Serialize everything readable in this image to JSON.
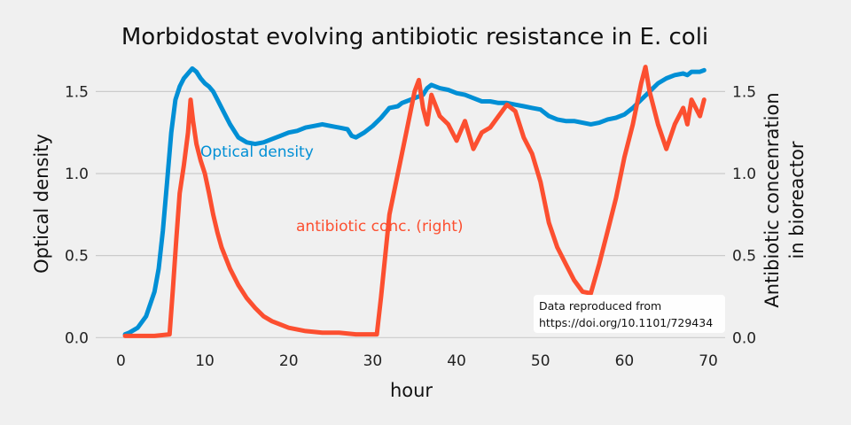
{
  "chart_data": {
    "type": "line",
    "title": "Morbidostat evolving antibiotic resistance in E. coli",
    "xlabel": "hour",
    "ylabel": "Optical density",
    "ylabel_right": [
      "Antibiotic concenration",
      "in bioreactor"
    ],
    "xlim": [
      -3,
      72
    ],
    "ylim": [
      -0.02,
      1.68
    ],
    "ylim_right": [
      -0.02,
      1.68
    ],
    "x_ticks": [
      0,
      10,
      20,
      30,
      40,
      50,
      60,
      70
    ],
    "x_tick_labels": [
      "0",
      "10",
      "20",
      "30",
      "40",
      "50",
      "60",
      "70"
    ],
    "y_ticks": [
      0,
      0.5,
      1.0,
      1.5
    ],
    "y_tick_labels": [
      "0.0",
      "0.5",
      "1.0",
      "1.5"
    ],
    "y_right_tick_labels": [
      "0.0",
      "0.5",
      "1.0",
      "1.5"
    ],
    "grid": true,
    "series": [
      {
        "name": "Optical density",
        "axis": "left",
        "color": "#008fd5",
        "x": [
          0.5,
          1,
          2,
          3,
          4,
          4.5,
          5,
          5.5,
          6,
          6.5,
          7,
          7.5,
          8,
          8.5,
          9,
          9.5,
          10,
          10.5,
          11,
          11.5,
          12,
          13,
          14,
          15,
          16,
          17,
          18,
          19,
          20,
          21,
          22,
          23,
          24,
          25,
          26,
          27,
          27.5,
          28,
          29,
          30,
          31,
          32,
          33,
          33.5,
          34,
          35,
          36,
          36.5,
          37,
          38,
          39,
          40,
          41,
          42,
          43,
          44,
          45,
          46,
          47,
          48,
          49,
          50,
          51,
          52,
          53,
          54,
          55,
          56,
          57,
          58,
          59,
          60,
          61,
          62,
          63,
          64,
          65,
          66,
          67,
          67.5,
          68,
          69,
          69.5
        ],
        "values": [
          0.02,
          0.03,
          0.06,
          0.13,
          0.28,
          0.42,
          0.65,
          0.95,
          1.25,
          1.45,
          1.53,
          1.58,
          1.61,
          1.64,
          1.62,
          1.58,
          1.55,
          1.53,
          1.5,
          1.45,
          1.4,
          1.3,
          1.22,
          1.19,
          1.18,
          1.19,
          1.21,
          1.23,
          1.25,
          1.26,
          1.28,
          1.29,
          1.3,
          1.29,
          1.28,
          1.27,
          1.23,
          1.22,
          1.25,
          1.29,
          1.34,
          1.4,
          1.41,
          1.43,
          1.44,
          1.46,
          1.48,
          1.52,
          1.54,
          1.52,
          1.51,
          1.49,
          1.48,
          1.46,
          1.44,
          1.44,
          1.43,
          1.43,
          1.42,
          1.41,
          1.4,
          1.39,
          1.35,
          1.33,
          1.32,
          1.32,
          1.31,
          1.3,
          1.31,
          1.33,
          1.34,
          1.36,
          1.4,
          1.45,
          1.5,
          1.55,
          1.58,
          1.6,
          1.61,
          1.6,
          1.62,
          1.62,
          1.63
        ]
      },
      {
        "name": "antibiotic conc. (right)",
        "axis": "right",
        "color": "#fc4f30",
        "x": [
          0.5,
          2,
          4,
          5.8,
          6.2,
          6.6,
          7,
          7.5,
          8,
          8.3,
          8.6,
          9,
          9.5,
          10,
          10.5,
          11,
          11.5,
          12,
          13,
          14,
          15,
          16,
          17,
          18,
          19,
          20,
          22,
          24,
          26,
          28,
          30,
          30.5,
          31,
          31.5,
          32,
          33,
          34,
          35,
          35.5,
          36,
          36.5,
          37,
          38,
          39,
          40,
          41,
          42,
          43,
          44,
          45,
          46,
          47,
          48,
          49,
          50,
          51,
          52,
          53,
          54,
          55,
          56,
          57,
          58,
          59,
          60,
          61,
          62,
          62.5,
          63,
          64,
          65,
          66,
          67,
          67.5,
          68,
          69,
          69.5
        ],
        "values": [
          0.01,
          0.01,
          0.01,
          0.02,
          0.3,
          0.6,
          0.88,
          1.05,
          1.25,
          1.45,
          1.32,
          1.18,
          1.08,
          1.0,
          0.88,
          0.75,
          0.64,
          0.55,
          0.42,
          0.32,
          0.24,
          0.18,
          0.13,
          0.1,
          0.08,
          0.06,
          0.04,
          0.03,
          0.03,
          0.02,
          0.02,
          0.02,
          0.25,
          0.5,
          0.75,
          1.0,
          1.25,
          1.5,
          1.57,
          1.4,
          1.3,
          1.48,
          1.35,
          1.3,
          1.2,
          1.32,
          1.15,
          1.25,
          1.28,
          1.35,
          1.42,
          1.38,
          1.22,
          1.12,
          0.95,
          0.7,
          0.55,
          0.45,
          0.35,
          0.28,
          0.27,
          0.45,
          0.65,
          0.85,
          1.1,
          1.3,
          1.55,
          1.65,
          1.5,
          1.3,
          1.15,
          1.3,
          1.4,
          1.3,
          1.45,
          1.35,
          1.45
        ]
      }
    ],
    "annotations": [
      "Optical density",
      "antibiotic conc. (right)"
    ],
    "note": [
      "Data reproduced from",
      "https://doi.org/10.1101/729434"
    ]
  },
  "colors": {
    "background": "#f0f0f0",
    "grid": "#cbcbcb",
    "blue": "#008fd5",
    "red": "#fc4f30"
  }
}
